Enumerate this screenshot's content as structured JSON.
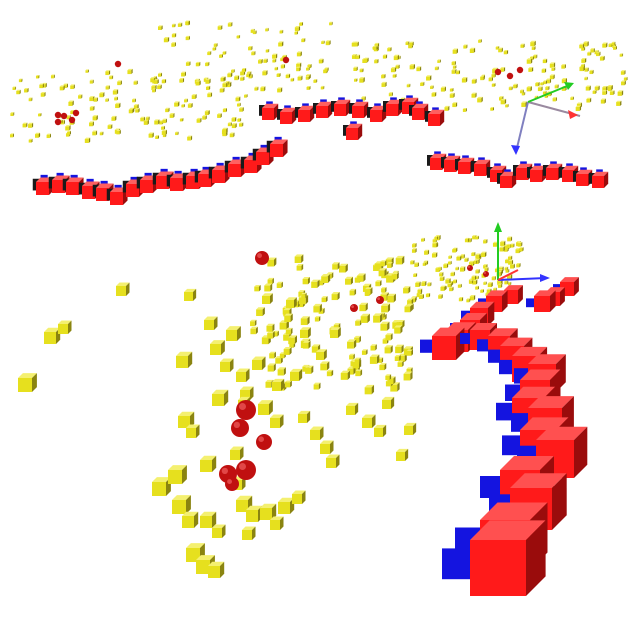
{
  "scene": {
    "description_free": true,
    "colors": {
      "background": "#ffffff",
      "landmark_yellow": "#e6e01e",
      "landmark_yellow_dark": "#8a8410",
      "robot_red": "#ff1a1a",
      "robot_red_dark": "#9a0c0c",
      "robot_blue": "#1414e0",
      "robot_black": "#1a1a1a",
      "sphere_red": "#c01010",
      "axis_x": "#ff3333",
      "axis_y": "#22cc22",
      "axis_z": "#3333ff",
      "axis_link": "#8080c0"
    },
    "views": [
      {
        "id": "top-view",
        "icon": "point-cloud-view"
      },
      {
        "id": "bottom-view",
        "icon": "point-cloud-view"
      }
    ]
  }
}
